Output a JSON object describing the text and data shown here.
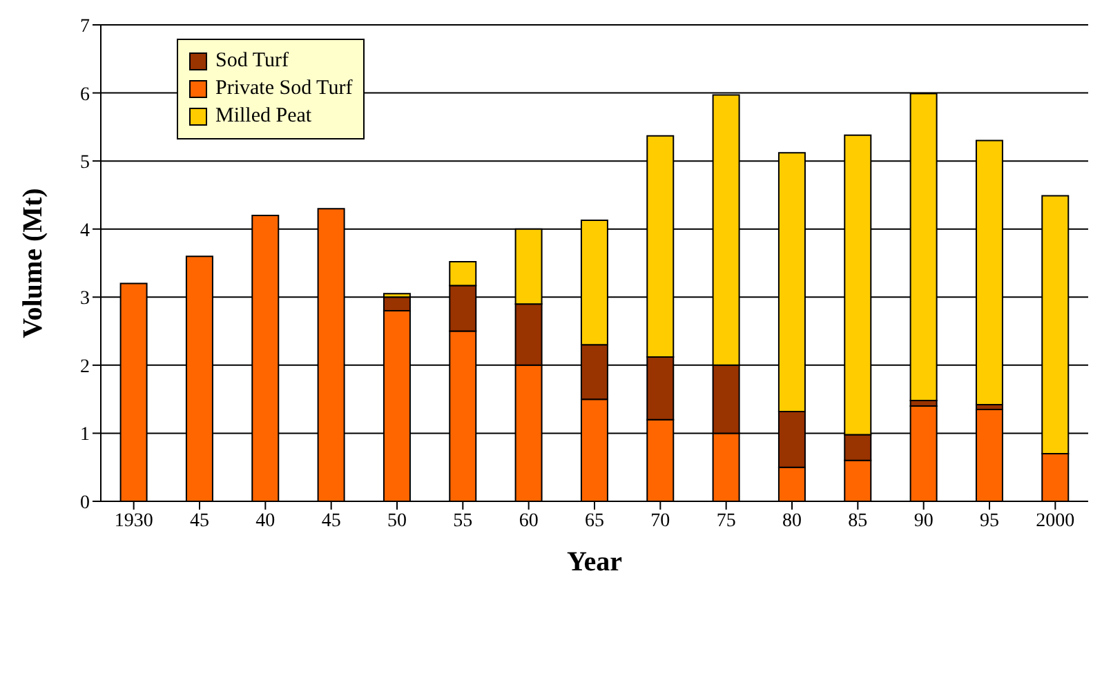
{
  "chart_data": {
    "type": "bar",
    "stacked": true,
    "xlabel": "Year",
    "ylabel": "Volume (Mt)",
    "categories": [
      "1930",
      "45",
      "40",
      "45",
      "50",
      "55",
      "60",
      "65",
      "70",
      "75",
      "80",
      "85",
      "90",
      "95",
      "2000"
    ],
    "series": [
      {
        "name": "Private Sod Turf",
        "color": "#ff6600",
        "values": [
          3.2,
          3.6,
          4.2,
          4.3,
          2.8,
          2.5,
          2.0,
          1.5,
          1.2,
          1.0,
          0.5,
          0.6,
          1.4,
          1.35,
          0.7
        ]
      },
      {
        "name": "Sod Turf",
        "color": "#993300",
        "values": [
          0,
          0,
          0,
          0,
          0.2,
          0.67,
          0.9,
          0.8,
          0.92,
          1.0,
          0.82,
          0.38,
          0.08,
          0.07,
          0
        ]
      },
      {
        "name": "Milled Peat",
        "color": "#ffcc00",
        "values": [
          0,
          0,
          0,
          0,
          0.05,
          0.35,
          1.1,
          1.83,
          3.25,
          3.97,
          3.8,
          4.4,
          4.51,
          3.88,
          3.79
        ]
      }
    ],
    "ylim": [
      0,
      7
    ],
    "yticks": [
      0,
      1,
      2,
      3,
      4,
      5,
      6,
      7
    ],
    "grid": "y",
    "legend": "top left"
  }
}
